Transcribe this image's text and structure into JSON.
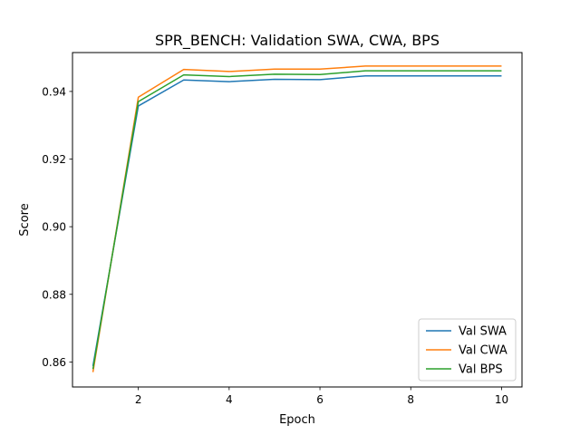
{
  "chart_data": {
    "type": "line",
    "title": "SPR_BENCH: Validation SWA, CWA, BPS",
    "xlabel": "Epoch",
    "ylabel": "Score",
    "xlim": [
      0.55,
      10.45
    ],
    "ylim": [
      0.8526,
      0.9515
    ],
    "xticks": [
      2,
      4,
      6,
      8,
      10
    ],
    "yticks": [
      0.86,
      0.88,
      0.9,
      0.92,
      0.94
    ],
    "ytick_labels": [
      "0.86",
      "0.88",
      "0.90",
      "0.92",
      "0.94"
    ],
    "xtick_labels": [
      "2",
      "4",
      "6",
      "8",
      "10"
    ],
    "grid": false,
    "legend_position": "lower-right",
    "x": [
      1,
      2,
      3,
      4,
      5,
      6,
      7,
      8,
      9,
      10
    ],
    "series": [
      {
        "name": "Val SWA",
        "color": "#1f77b4",
        "values": [
          0.8588,
          0.9357,
          0.9434,
          0.9429,
          0.9436,
          0.9435,
          0.9446,
          0.9446,
          0.9446,
          0.9446
        ]
      },
      {
        "name": "Val CWA",
        "color": "#ff7f0e",
        "values": [
          0.857,
          0.9383,
          0.9465,
          0.9459,
          0.9466,
          0.9466,
          0.9475,
          0.9475,
          0.9475,
          0.9475
        ]
      },
      {
        "name": "Val BPS",
        "color": "#2ca02c",
        "values": [
          0.8579,
          0.937,
          0.9449,
          0.9444,
          0.9451,
          0.945,
          0.9461,
          0.9461,
          0.9461,
          0.9461
        ]
      }
    ]
  }
}
